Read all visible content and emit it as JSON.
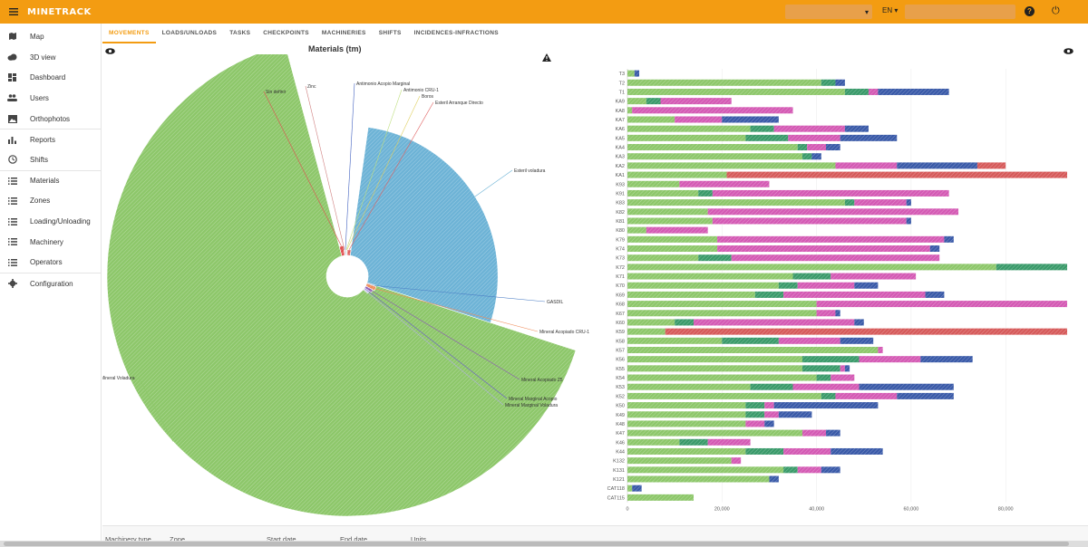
{
  "app": {
    "logo": "MINETRACK",
    "language": "EN",
    "company_value": "",
    "search_value": ""
  },
  "colors": {
    "accent": "#f39c12"
  },
  "sidebar": {
    "items": [
      {
        "label": "Map",
        "icon": "map-icon"
      },
      {
        "label": "3D view",
        "icon": "cloud-icon"
      },
      {
        "label": "Dashboard",
        "icon": "dashboard-icon"
      },
      {
        "label": "Users",
        "icon": "users-icon"
      },
      {
        "label": "Orthophotos",
        "icon": "image-icon"
      },
      {
        "label": "Reports",
        "icon": "bar-chart-icon"
      },
      {
        "label": "Shifts",
        "icon": "clock-icon"
      },
      {
        "label": "Materials",
        "icon": "list-icon"
      },
      {
        "label": "Zones",
        "icon": "list-icon"
      },
      {
        "label": "Loading/Unloading",
        "icon": "list-icon"
      },
      {
        "label": "Machinery",
        "icon": "list-icon"
      },
      {
        "label": "Operators",
        "icon": "list-icon"
      },
      {
        "label": "Configuration",
        "icon": "gear-icon"
      }
    ]
  },
  "tabs": [
    "MOVEMENTS",
    "LOADS/UNLOADS",
    "TASKS",
    "CHECKPOINTS",
    "MACHINERIES",
    "SHIFTS",
    "INCIDENCES-INFRACTIONS"
  ],
  "active_tab": "MOVEMENTS",
  "filters": [
    "Machinery type",
    "Zone",
    "Start date",
    "End date",
    "Units"
  ],
  "chart_data": [
    {
      "type": "pie",
      "title": "Materials (tm)",
      "variant": "rose",
      "slices": [
        {
          "label": "Mineral Voladura",
          "value": 100,
          "color": "#8dc76a"
        },
        {
          "label": "Esteril voladura",
          "value": 35,
          "color": "#6db3d6"
        },
        {
          "label": "GASDIL",
          "value": 2,
          "color": "#4a7cc4"
        },
        {
          "label": "Mineral Acopiado CRU-1",
          "value": 3,
          "color": "#f08c5a"
        },
        {
          "label": "Mineral Acopiado Z5",
          "value": 2,
          "color": "#8c5ab4"
        },
        {
          "label": "Mineral Marginal Acopio",
          "value": 1,
          "color": "#6a5acd"
        },
        {
          "label": "Mineral Marginal Voladura",
          "value": 1,
          "color": "#b0b0e0"
        },
        {
          "label": "Sin definir",
          "value": 3,
          "color": "#e05050"
        },
        {
          "label": "Zinc",
          "value": 1,
          "color": "#d08080"
        },
        {
          "label": "Antimonio Acopio Marginal",
          "value": 1,
          "color": "#4060c0"
        },
        {
          "label": "Antimonio CRU-1",
          "value": 1,
          "color": "#c0e080"
        },
        {
          "label": "Boros",
          "value": 1,
          "color": "#e0d060"
        },
        {
          "label": "Esteril Arranque Directo",
          "value": 1,
          "color": "#e06060"
        }
      ]
    },
    {
      "type": "bar",
      "orientation": "horizontal",
      "stacked": true,
      "categories": [
        "T3",
        "T2",
        "T1",
        "KA9",
        "KA8",
        "KA7",
        "KA6",
        "KA5",
        "KA4",
        "KA3",
        "KA2",
        "KA1",
        "K93",
        "K91",
        "K83",
        "K82",
        "K81",
        "K80",
        "K79",
        "K74",
        "K73",
        "K72",
        "K71",
        "K70",
        "K69",
        "K68",
        "K67",
        "K60",
        "K59",
        "K58",
        "K57",
        "K56",
        "K55",
        "K54",
        "K53",
        "K52",
        "K50",
        "K49",
        "K48",
        "K47",
        "K46",
        "K44",
        "K132",
        "K131",
        "K121",
        "CAT118",
        "CAT115"
      ],
      "xticks": [
        "0",
        "20,000",
        "40,000",
        "60,000",
        "80,000"
      ],
      "xlim": [
        0,
        93000
      ],
      "series": [
        {
          "color": "#8dc76a",
          "values": [
            1500,
            41000,
            46000,
            4000,
            1000,
            10000,
            26000,
            25000,
            36000,
            37000,
            44000,
            21000,
            11000,
            15000,
            46000,
            17000,
            18000,
            4000,
            19000,
            19000,
            15000,
            78000,
            35000,
            32000,
            27000,
            40000,
            40000,
            10000,
            8000,
            20000,
            53000,
            37000,
            37000,
            40000,
            26000,
            41000,
            25000,
            25000,
            25000,
            37000,
            11000,
            25000,
            22000,
            33000,
            30000,
            1000,
            14000
          ]
        },
        {
          "color": "#3a9a6a",
          "values": [
            0,
            3000,
            5000,
            3000,
            0,
            0,
            5000,
            9000,
            2000,
            2000,
            0,
            0,
            0,
            3000,
            2000,
            0,
            0,
            0,
            0,
            0,
            7000,
            15000,
            8000,
            4000,
            6000,
            0,
            0,
            4000,
            0,
            12000,
            0,
            12000,
            8000,
            3000,
            9000,
            3000,
            4000,
            4000,
            0,
            0,
            6000,
            8000,
            0,
            3000,
            0,
            0,
            0
          ]
        },
        {
          "color": "#d45ab4",
          "values": [
            0,
            0,
            2000,
            15000,
            34000,
            10000,
            15000,
            11000,
            4000,
            0,
            13000,
            0,
            19000,
            50000,
            11000,
            53000,
            41000,
            13000,
            48000,
            45000,
            44000,
            0,
            18000,
            12000,
            30000,
            53000,
            4000,
            34000,
            0,
            13000,
            1000,
            13000,
            1000,
            5000,
            14000,
            13000,
            2000,
            3000,
            4000,
            5000,
            9000,
            10000,
            2000,
            5000,
            0,
            0,
            0
          ]
        },
        {
          "color": "#3a5aa8",
          "values": [
            1000,
            2000,
            15000,
            0,
            0,
            12000,
            5000,
            12000,
            3000,
            2000,
            17000,
            0,
            0,
            0,
            1000,
            0,
            1000,
            0,
            2000,
            2000,
            0,
            0,
            0,
            5000,
            4000,
            0,
            1000,
            2000,
            0,
            7000,
            0,
            11000,
            1000,
            0,
            20000,
            12000,
            22000,
            7000,
            2000,
            3000,
            0,
            11000,
            0,
            4000,
            2000,
            2000,
            0
          ]
        },
        {
          "color": "#d65a5a",
          "values": [
            0,
            0,
            0,
            0,
            0,
            0,
            0,
            0,
            0,
            0,
            6000,
            72000,
            0,
            0,
            0,
            0,
            0,
            0,
            0,
            0,
            0,
            0,
            0,
            0,
            0,
            0,
            0,
            0,
            85000,
            0,
            0,
            0,
            0,
            0,
            0,
            0,
            0,
            0,
            0,
            0,
            0,
            0,
            0,
            0,
            0,
            0,
            0
          ]
        }
      ]
    }
  ]
}
